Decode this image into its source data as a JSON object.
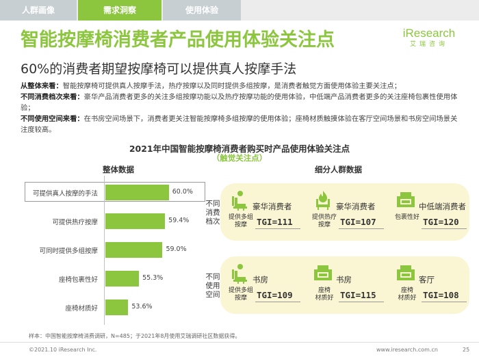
{
  "tabs": [
    "人群画像",
    "需求洞察",
    "使用体验"
  ],
  "title": "智能按摩椅消费者产品使用体验关注点",
  "logo": {
    "main": "iResearch",
    "sub": "艾瑞咨询"
  },
  "subtitle": "60%的消费者期望按摩椅可以提供真人按摩手法",
  "descriptions": [
    {
      "head": "从整体来看：",
      "text": "智能按摩椅可提供真人按摩手法，热疗按摩以及同时提供多组按摩，是消费者触觉方面使用体验主要关注点；"
    },
    {
      "head": "不同消费档次来看：",
      "text": "豪华产品消费者更多的关注多组按摩功能以及热疗按摩功能的使用体验，中低端产品消费者更多的关注座椅包裹性使用体验；"
    },
    {
      "head": "不同使用空间来看：",
      "text": "在书房空间场景下，消费者更关注智能按摩椅多组按摩的使用体验；座椅材质触摸体验在客厅空间场景和书房空间场景关注度较高。"
    }
  ],
  "chart": {
    "title": "2021年中国智能按摩椅消费者购买时产品使用体验关注点",
    "subtitle": "（触觉关注点）",
    "left_title": "整体数据",
    "right_title": "细分人群数据"
  },
  "chart_data": {
    "type": "bar",
    "orientation": "horizontal",
    "title": "2021年中国智能按摩椅消费者购买时产品使用体验关注点",
    "subtitle": "触觉关注点",
    "categories": [
      "可提供真人按摩的手法",
      "可提供热疗按摩",
      "可同时提供多组按摩",
      "座椅包裹性好",
      "座椅材质好"
    ],
    "values": [
      60.0,
      59.4,
      59.0,
      55.3,
      53.6
    ],
    "value_labels": [
      "60.0%",
      "59.4%",
      "59.0%",
      "55.3%",
      "53.6%"
    ],
    "unit": "%",
    "xlim": [
      50,
      61
    ]
  },
  "groups": [
    {
      "label": "不同\n消费\n档次",
      "items": [
        {
          "segment": "豪华消费者",
          "feature": "提供多组\n按摩",
          "tgi": "TGI=111",
          "icon": "armchair-icon"
        },
        {
          "segment": "豪华消费者",
          "feature": "提供热疗\n按摩",
          "tgi": "TGI=107",
          "icon": "heat-chair-icon"
        },
        {
          "segment": "中低端消费者",
          "feature": "包裹性好",
          "tgi": "TGI=120",
          "icon": "sofa-icon"
        }
      ]
    },
    {
      "label": "不同\n使用\n空间",
      "items": [
        {
          "segment": "书房",
          "feature": "提供多组\n按摩",
          "tgi": "TGI=109",
          "icon": "armchair-icon"
        },
        {
          "segment": "书房",
          "feature": "座椅\n材质好",
          "tgi": "TGI=115",
          "icon": "sofa-icon"
        },
        {
          "segment": "客厅",
          "feature": "座椅\n材质好",
          "tgi": "TGI=108",
          "icon": "sofa-icon"
        }
      ]
    }
  ],
  "note": "样本：中国智能按摩椅消费调研，N=485；于2021年8月使用艾瑞调研社区数据获得。",
  "footer": {
    "copyright": "©2021.10 iResearch Inc.",
    "site": "www.iresearch.com.cn",
    "page": "25"
  },
  "colors": {
    "accent": "#8cc63f",
    "panel": "#faf5d3",
    "tab_inactive": "#c7cfd2"
  }
}
